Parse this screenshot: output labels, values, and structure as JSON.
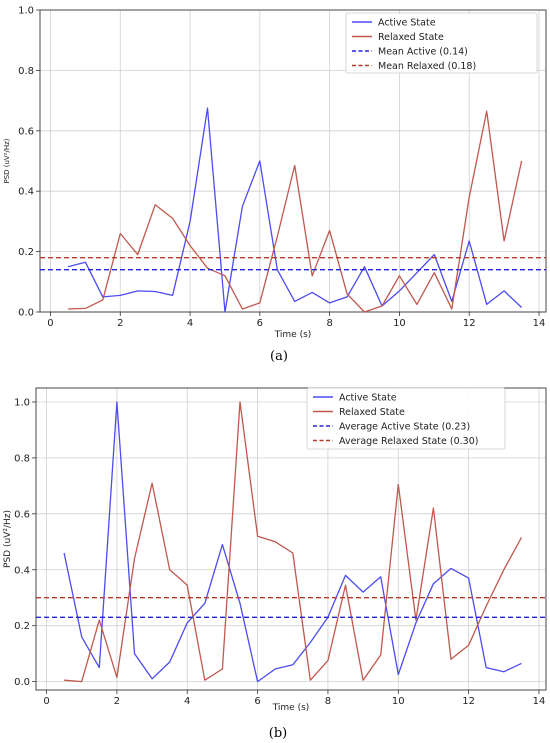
{
  "chart_data": [
    {
      "type": "line",
      "panel_label": "(a)",
      "xlabel": "Time (s)",
      "ylabel": "PSD (uV²/Hz)",
      "xlim": [
        -0.3,
        14.2
      ],
      "ylim": [
        0,
        1.0
      ],
      "xticks": [
        0,
        2,
        4,
        6,
        8,
        10,
        12,
        14
      ],
      "yticks": [
        "0.0",
        "0.2",
        "0.4",
        "0.6",
        "0.8",
        "1.0"
      ],
      "grid": true,
      "legend_position": "top-right",
      "series": [
        {
          "name": "Active State",
          "color": "#4c4cf0",
          "x": [
            0.5,
            1.0,
            1.5,
            2.0,
            2.5,
            3.0,
            3.5,
            4.0,
            4.5,
            5.0,
            5.5,
            6.0,
            6.5,
            7.0,
            7.5,
            8.0,
            8.5,
            9.0,
            9.5,
            10.0,
            10.5,
            11.0,
            11.5,
            12.0,
            12.5,
            13.0,
            13.5
          ],
          "y": [
            0.15,
            0.165,
            0.05,
            0.055,
            0.07,
            0.068,
            0.055,
            0.3,
            0.675,
            0.0,
            0.35,
            0.5,
            0.14,
            0.035,
            0.065,
            0.03,
            0.05,
            0.15,
            0.02,
            0.07,
            0.13,
            0.19,
            0.035,
            0.235,
            0.025,
            0.07,
            0.015
          ]
        },
        {
          "name": "Relaxed State",
          "color": "#c0584e",
          "x": [
            0.5,
            1.0,
            1.5,
            2.0,
            2.5,
            3.0,
            3.5,
            4.0,
            4.5,
            5.0,
            5.5,
            6.0,
            6.5,
            7.0,
            7.5,
            8.0,
            8.5,
            9.0,
            9.5,
            10.0,
            10.5,
            11.0,
            11.5,
            12.0,
            12.5,
            13.0,
            13.5
          ],
          "y": [
            0.01,
            0.012,
            0.04,
            0.26,
            0.19,
            0.355,
            0.31,
            0.22,
            0.145,
            0.12,
            0.01,
            0.03,
            0.25,
            0.485,
            0.12,
            0.27,
            0.06,
            0.0,
            0.02,
            0.12,
            0.025,
            0.13,
            0.01,
            0.38,
            0.665,
            0.235,
            0.5
          ]
        },
        {
          "name": "Mean Active (0.14)",
          "color": "#2323d8",
          "style": "dashed",
          "value": 0.14
        },
        {
          "name": "Mean Relaxed (0.18)",
          "color": "#b43c2a",
          "style": "dashed",
          "value": 0.18
        }
      ]
    },
    {
      "type": "line",
      "panel_label": "(b)",
      "xlabel": "Time (s)",
      "ylabel": "PSD (uV²/Hz)",
      "xlim": [
        -0.3,
        14.2
      ],
      "ylim": [
        -0.03,
        1.05
      ],
      "xticks": [
        0,
        2,
        4,
        6,
        8,
        10,
        12,
        14
      ],
      "yticks": [
        "0.0",
        "0.2",
        "0.4",
        "0.6",
        "0.8",
        "1.0"
      ],
      "grid": true,
      "legend_position": "top-right",
      "series": [
        {
          "name": "Active State",
          "color": "#4c4cf0",
          "x": [
            0.5,
            1.0,
            1.5,
            2.0,
            2.5,
            3.0,
            3.5,
            4.0,
            4.5,
            5.0,
            5.5,
            6.0,
            6.5,
            7.0,
            7.5,
            8.0,
            8.5,
            9.0,
            9.5,
            10.0,
            10.5,
            11.0,
            11.5,
            12.0,
            12.5,
            13.0,
            13.5
          ],
          "y": [
            0.46,
            0.16,
            0.05,
            1.0,
            0.1,
            0.01,
            0.07,
            0.21,
            0.28,
            0.49,
            0.28,
            0.0,
            0.045,
            0.06,
            0.14,
            0.23,
            0.38,
            0.32,
            0.375,
            0.025,
            0.21,
            0.35,
            0.405,
            0.37,
            0.05,
            0.035,
            0.065
          ]
        },
        {
          "name": "Relaxed State",
          "color": "#c0584e",
          "x": [
            0.5,
            1.0,
            1.5,
            2.0,
            2.5,
            3.0,
            3.5,
            4.0,
            4.5,
            5.0,
            5.5,
            6.0,
            6.5,
            7.0,
            7.5,
            8.0,
            8.5,
            9.0,
            9.5,
            10.0,
            10.5,
            11.0,
            11.5,
            12.0,
            12.5,
            13.0,
            13.5
          ],
          "y": [
            0.005,
            0.0,
            0.22,
            0.015,
            0.44,
            0.71,
            0.4,
            0.345,
            0.005,
            0.045,
            1.0,
            0.52,
            0.5,
            0.46,
            0.005,
            0.075,
            0.345,
            0.005,
            0.095,
            0.705,
            0.22,
            0.62,
            0.08,
            0.13,
            0.27,
            0.4,
            0.515
          ]
        },
        {
          "name": "Average Active State (0.23)",
          "color": "#2323d8",
          "style": "dashed",
          "value": 0.23
        },
        {
          "name": "Average Relaxed State (0.30)",
          "color": "#b43c2a",
          "style": "dashed",
          "value": 0.3
        }
      ]
    }
  ]
}
